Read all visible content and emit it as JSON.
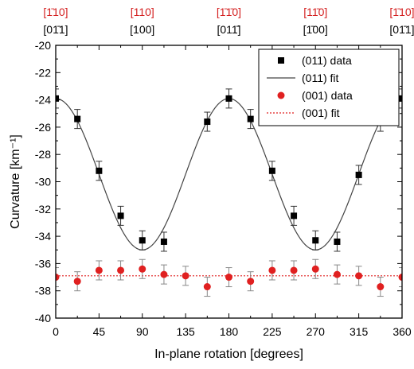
{
  "chart_data": {
    "type": "scatter",
    "xlabel": "In-plane rotation [degrees]",
    "ylabel": "Curvature [km⁻¹]",
    "xlim": [
      0,
      360
    ],
    "ylim": [
      -40,
      -20
    ],
    "xticks": [
      "0",
      "45",
      "90",
      "135",
      "180",
      "225",
      "270",
      "315",
      "360"
    ],
    "yticks": [
      "-20",
      "-22",
      "-24",
      "-26",
      "-28",
      "-30",
      "-32",
      "-34",
      "-36",
      "-38",
      "-40"
    ],
    "legend_position": "top-right",
    "top_axis_labels": [
      {
        "x": 0,
        "red": "[1̄10]",
        "black": "[01̄1]"
      },
      {
        "x": 90,
        "red": "[110]",
        "black": "[100]"
      },
      {
        "x": 180,
        "red": "[1̄1̄0]",
        "black": "[011̄]"
      },
      {
        "x": 270,
        "red": "[11̄0]",
        "black": "[1̄00]"
      },
      {
        "x": 360,
        "red": "[1̄10]",
        "black": "[01̄1]"
      }
    ],
    "series": [
      {
        "name": "(011) data",
        "kind": "points",
        "color": "#000000",
        "marker": "square",
        "x": [
          0,
          22.5,
          45,
          67.5,
          90,
          112.5,
          157.5,
          180,
          202.5,
          225,
          247.5,
          270,
          292.5,
          315,
          337.5,
          360
        ],
        "y": [
          -23.9,
          -25.4,
          -29.2,
          -32.5,
          -34.3,
          -34.4,
          -25.6,
          -23.9,
          -25.4,
          -29.2,
          -32.5,
          -34.3,
          -34.4,
          -29.5,
          -25.6,
          -23.9
        ],
        "err": [
          0.7,
          0.7,
          0.7,
          0.7,
          0.7,
          0.7,
          0.7,
          0.7,
          0.7,
          0.7,
          0.7,
          0.7,
          0.7,
          0.7,
          0.7,
          0.7
        ]
      },
      {
        "name": "(011) fit",
        "kind": "cosine",
        "color": "#444444",
        "offset": -29.45,
        "amplitude": 5.55,
        "period_deg": 180
      },
      {
        "name": "(001) data",
        "kind": "points",
        "color": "#e02020",
        "marker": "circle",
        "x": [
          0,
          22.5,
          45,
          67.5,
          90,
          112.5,
          135,
          157.5,
          180,
          202.5,
          225,
          247.5,
          270,
          292.5,
          315,
          337.5,
          360
        ],
        "y": [
          -37.0,
          -37.3,
          -36.5,
          -36.5,
          -36.4,
          -36.8,
          -36.9,
          -37.7,
          -37.0,
          -37.3,
          -36.5,
          -36.5,
          -36.4,
          -36.8,
          -36.9,
          -37.7,
          -37.0
        ],
        "err": [
          0.7,
          0.7,
          0.7,
          0.7,
          0.7,
          0.7,
          0.7,
          0.7,
          0.7,
          0.7,
          0.7,
          0.7,
          0.7,
          0.7,
          0.7,
          0.7,
          0.7
        ]
      },
      {
        "name": "(001) fit",
        "kind": "constant",
        "color": "#e02020",
        "value": -36.9
      }
    ]
  }
}
